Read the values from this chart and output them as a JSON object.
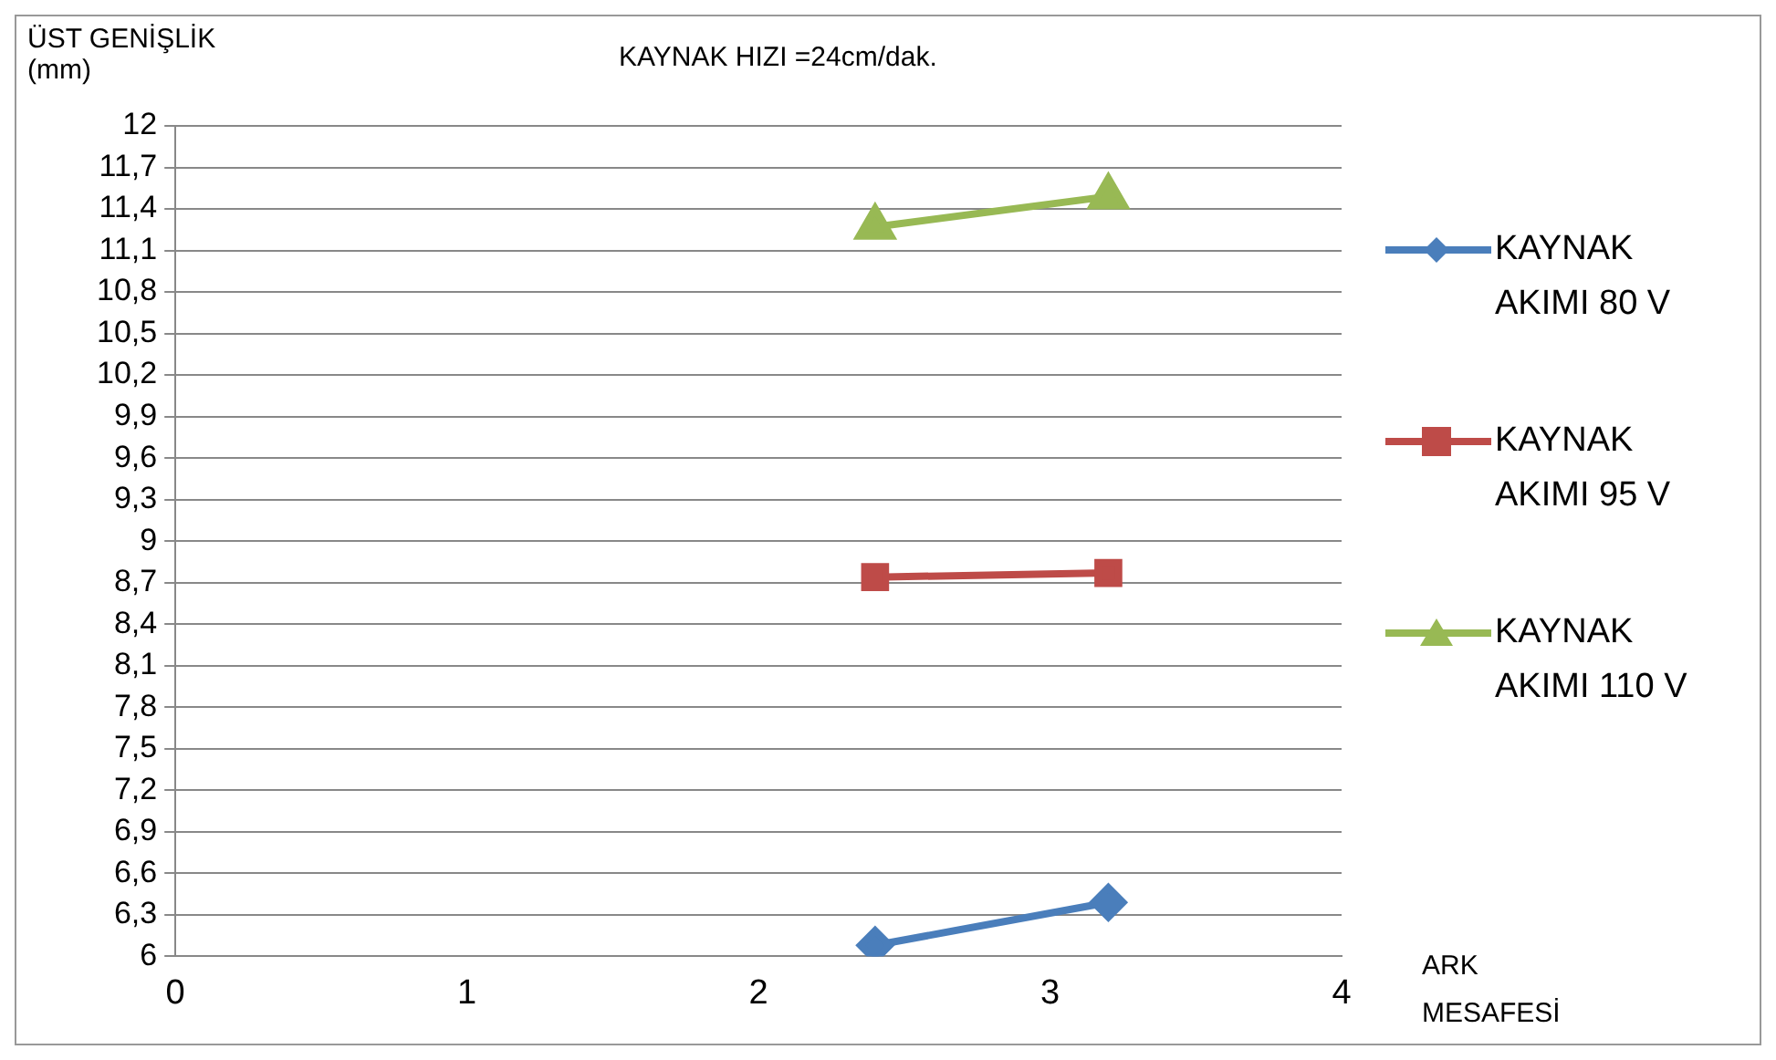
{
  "chart_data": {
    "type": "line",
    "title": "KAYNAK HIZI =24cm/dak.",
    "ylabel": "ÜST GENİŞLİK (mm)",
    "xlabel": "ARK MESAFESİ",
    "x": [
      2.4,
      3.2
    ],
    "series": [
      {
        "name": "KAYNAK AKIMI 80 V",
        "color": "#4a7ebb",
        "marker": "diamond",
        "values": [
          6.08,
          6.39
        ]
      },
      {
        "name": "KAYNAK AKIMI 95 V",
        "color": "#be4b48",
        "marker": "square",
        "values": [
          8.74,
          8.77
        ]
      },
      {
        "name": "KAYNAK AKIMI 110 V",
        "color": "#98b954",
        "marker": "triangle",
        "values": [
          11.27,
          11.49
        ]
      }
    ],
    "xlim": [
      0,
      4
    ],
    "xticks": [
      0,
      1,
      2,
      3,
      4
    ],
    "ylim": [
      6,
      12
    ],
    "yticks": [
      6,
      {
        "value": 6.3,
        "label": "6,3"
      },
      {
        "value": 6.6,
        "label": "6,6"
      },
      {
        "value": 6.9,
        "label": "6,9"
      },
      {
        "value": 7.2,
        "label": "7,2"
      },
      {
        "value": 7.5,
        "label": "7,5"
      },
      {
        "value": 7.8,
        "label": "7,8"
      },
      {
        "value": 8.1,
        "label": "8,1"
      },
      {
        "value": 8.4,
        "label": "8,4"
      },
      {
        "value": 8.7,
        "label": "8,7"
      },
      9,
      {
        "value": 9.3,
        "label": "9,3"
      },
      {
        "value": 9.6,
        "label": "9,6"
      },
      {
        "value": 9.9,
        "label": "9,9"
      },
      {
        "value": 10.2,
        "label": "10,2"
      },
      {
        "value": 10.5,
        "label": "10,5"
      },
      {
        "value": 10.8,
        "label": "10,8"
      },
      {
        "value": 11.1,
        "label": "11,1"
      },
      {
        "value": 11.4,
        "label": "11,4"
      },
      {
        "value": 11.7,
        "label": "11,7"
      },
      12
    ],
    "grid": "y",
    "legend": "right"
  }
}
